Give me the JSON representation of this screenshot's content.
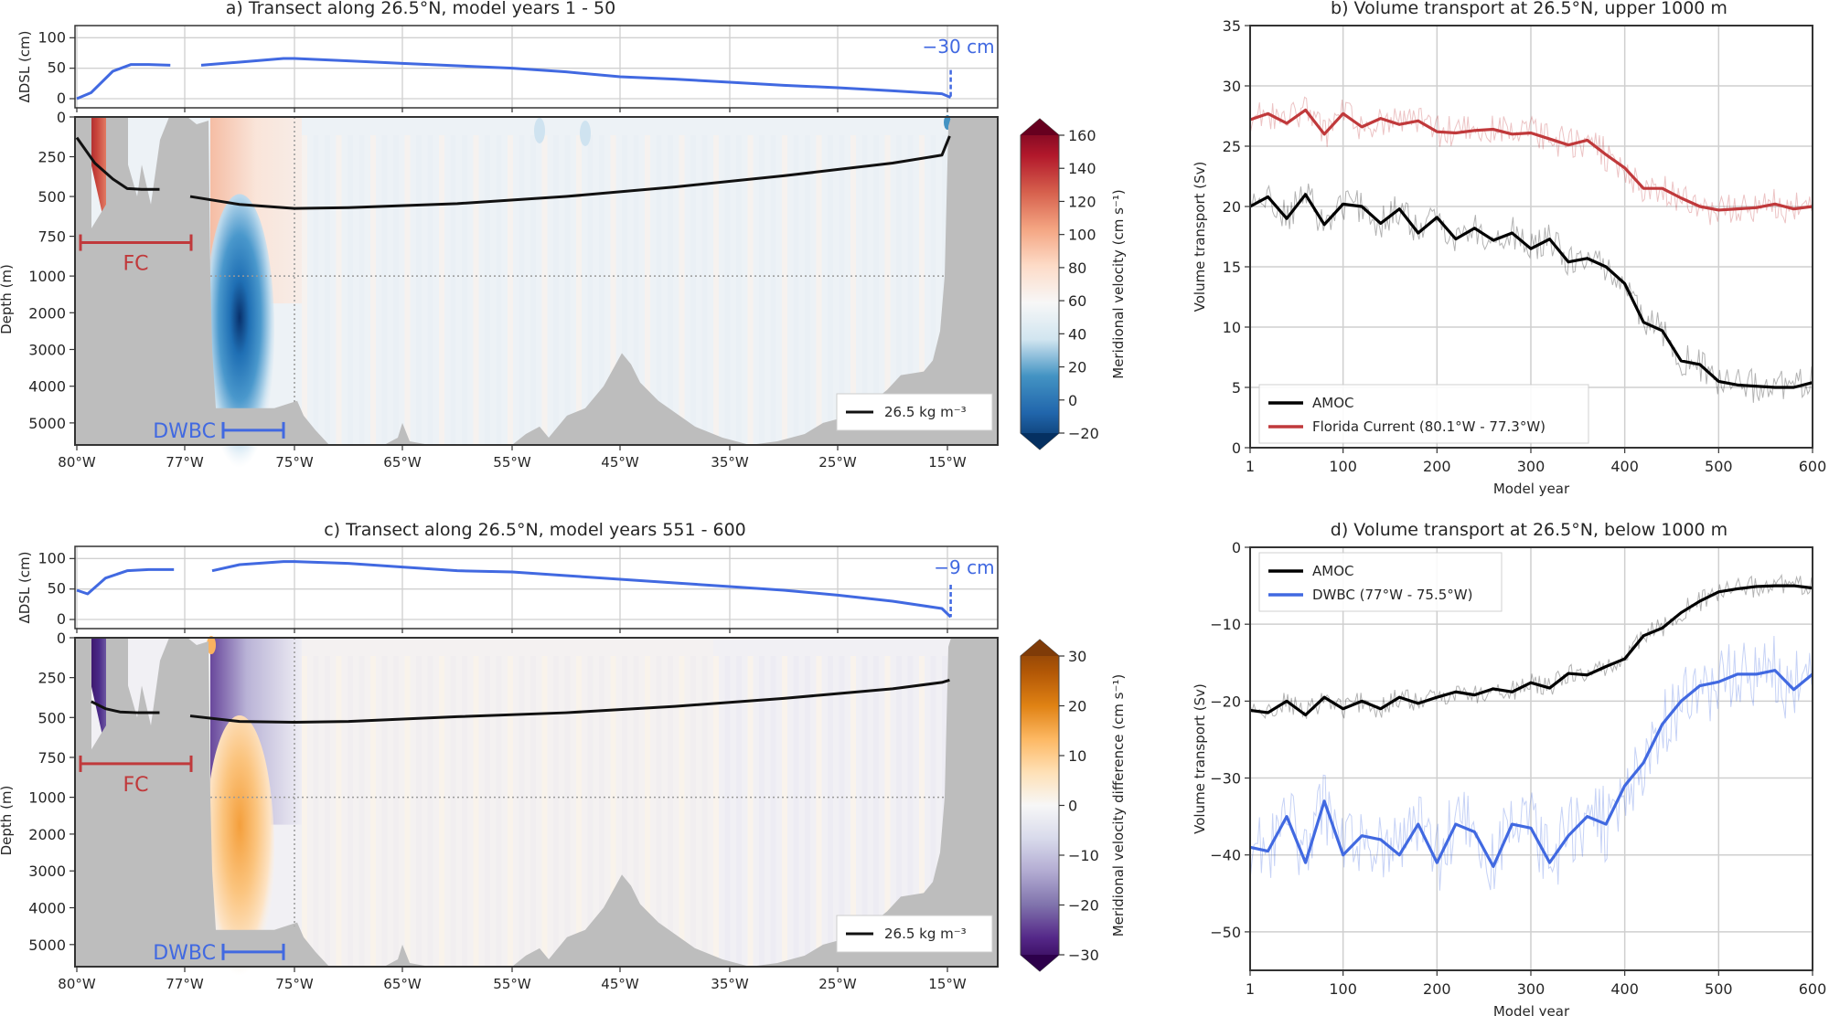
{
  "chart_data": [
    {
      "id": "a",
      "type": "heatmap",
      "title": "a) Transect along 26.5°N, model years 1 - 50",
      "dsl_panel": {
        "ylabel": "ΔDSL (cm)",
        "yticks": [
          0,
          50,
          100
        ],
        "ylim": [
          -15,
          120
        ],
        "series_color": "#4169e1",
        "x_lon": [
          -80,
          -79.6,
          -79.0,
          -78.5,
          -78,
          -77.4,
          -77.2,
          -76.7,
          -76,
          -75.2,
          -75,
          -70,
          -65,
          -60,
          -55,
          -50,
          -45,
          -40,
          -35,
          -30,
          -25,
          -20,
          -15.5,
          -14.7
        ],
        "y_cm": [
          0,
          10,
          45,
          56,
          56,
          55,
          null,
          55,
          60,
          66,
          66,
          62,
          58,
          54,
          50,
          44,
          36,
          32,
          27,
          22,
          18,
          13,
          8,
          2
        ],
        "annotation": "−30 cm"
      },
      "section": {
        "ylabel": "Depth (m)",
        "yticks_upper": [
          0,
          250,
          500,
          750,
          1000
        ],
        "yticks_lower": [
          2000,
          3000,
          4000,
          5000
        ],
        "xticks": [
          "80°W",
          "77°W",
          "75°W",
          "65°W",
          "55°W",
          "45°W",
          "35°W",
          "25°W",
          "15°W"
        ],
        "isopycnal_label": "26.5 kg m⁻³",
        "isopycnal_west": {
          "x_lon": [
            -80,
            -79.5,
            -79,
            -78.6,
            -78.2,
            -77.7
          ],
          "depth_m": [
            130,
            290,
            390,
            450,
            455,
            455
          ]
        },
        "isopycnal_main": {
          "x_lon": [
            -76.9,
            -76,
            -75,
            -70,
            -60,
            -50,
            -40,
            -30,
            -20,
            -15.5,
            -14.8
          ],
          "depth_m": [
            500,
            550,
            575,
            570,
            545,
            500,
            440,
            370,
            290,
            240,
            120
          ]
        },
        "fc_label": "FC",
        "fc_color": "#c0393b",
        "dwbc_label": "DWBC",
        "dwbc_color": "#4169e1"
      },
      "colorbar": {
        "label": "Meridional velocity (cm s⁻¹)",
        "ticks": [
          -20,
          0,
          20,
          40,
          60,
          80,
          100,
          120,
          140,
          160
        ],
        "range": [
          -20,
          160
        ],
        "colors": [
          "#053061",
          "#2166ac",
          "#4393c3",
          "#d1e5f0",
          "#f7f7f7",
          "#fddbc7",
          "#f4a582",
          "#d6604d",
          "#b2182b",
          "#67001f"
        ]
      }
    },
    {
      "id": "b",
      "type": "line",
      "title": "b) Volume transport at 26.5°N, upper 1000 m",
      "xlabel": "Model year",
      "ylabel": "Volume transport (Sv)",
      "xlim": [
        1,
        600
      ],
      "ylim": [
        0,
        35
      ],
      "xticks": [
        1,
        100,
        200,
        300,
        400,
        500,
        600
      ],
      "yticks": [
        0,
        5,
        10,
        15,
        20,
        25,
        30,
        35
      ],
      "grid": true,
      "legend_position": "lower-left",
      "x": [
        1,
        20,
        40,
        60,
        80,
        100,
        120,
        140,
        160,
        180,
        200,
        220,
        240,
        260,
        280,
        300,
        320,
        340,
        360,
        380,
        400,
        420,
        440,
        460,
        480,
        500,
        520,
        540,
        560,
        580,
        600
      ],
      "series": [
        {
          "name": "AMOC",
          "color": "#000000",
          "values": [
            20.0,
            20.8,
            19.0,
            21.0,
            18.5,
            20.2,
            20.0,
            18.6,
            19.8,
            17.8,
            19.1,
            17.3,
            18.2,
            17.2,
            17.8,
            16.5,
            17.3,
            15.4,
            15.7,
            15.0,
            13.6,
            10.4,
            9.7,
            7.2,
            6.9,
            5.5,
            5.2,
            5.1,
            5.0,
            5.0,
            5.4
          ]
        },
        {
          "name": "Florida Current (80.1°W - 77.3°W)",
          "color": "#c0393b",
          "values": [
            27.2,
            27.7,
            26.9,
            28.0,
            26.0,
            27.7,
            26.6,
            27.3,
            26.8,
            27.1,
            26.2,
            26.1,
            26.3,
            26.4,
            26.0,
            26.1,
            25.6,
            25.1,
            25.5,
            24.3,
            23.2,
            21.5,
            21.5,
            20.7,
            20.0,
            19.7,
            19.8,
            19.9,
            20.2,
            19.8,
            20.0
          ]
        }
      ]
    },
    {
      "id": "c",
      "type": "heatmap",
      "title": "c) Transect along 26.5°N, model years 551 - 600",
      "dsl_panel": {
        "ylabel": "ΔDSL (cm)",
        "yticks": [
          0,
          50,
          100
        ],
        "ylim": [
          -15,
          120
        ],
        "series_color": "#4169e1",
        "x_lon": [
          -80,
          -79.7,
          -79.2,
          -78.6,
          -78,
          -77.3,
          -77.0,
          -76.5,
          -76,
          -75.2,
          -75,
          -70,
          -65,
          -60,
          -55,
          -50,
          -45,
          -40,
          -35,
          -30,
          -25,
          -20,
          -15.5,
          -14.7
        ],
        "y_cm": [
          48,
          42,
          68,
          80,
          82,
          82,
          null,
          80,
          90,
          95,
          95,
          92,
          86,
          80,
          78,
          72,
          66,
          60,
          54,
          48,
          40,
          30,
          18,
          4
        ],
        "annotation": "−9 cm"
      },
      "section": {
        "ylabel": "Depth (m)",
        "yticks_upper": [
          0,
          250,
          500,
          750,
          1000
        ],
        "yticks_lower": [
          2000,
          3000,
          4000,
          5000
        ],
        "xticks": [
          "80°W",
          "77°W",
          "75°W",
          "65°W",
          "55°W",
          "45°W",
          "35°W",
          "25°W",
          "15°W"
        ],
        "isopycnal_label": "26.5 kg m⁻³",
        "isopycnal_west": {
          "x_lon": [
            -79.6,
            -79.2,
            -78.8,
            -78.3,
            -77.7
          ],
          "depth_m": [
            400,
            445,
            465,
            470,
            470
          ]
        },
        "isopycnal_main": {
          "x_lon": [
            -76.9,
            -76,
            -75,
            -70,
            -60,
            -50,
            -40,
            -30,
            -20,
            -15.5,
            -14.8
          ],
          "depth_m": [
            490,
            525,
            530,
            525,
            495,
            470,
            430,
            380,
            320,
            280,
            265
          ]
        },
        "fc_label": "FC",
        "fc_color": "#c0393b",
        "dwbc_label": "DWBC",
        "dwbc_color": "#4169e1"
      },
      "colorbar": {
        "label": "Meridional velocity difference (cm s⁻¹)",
        "ticks": [
          -30,
          -20,
          -10,
          0,
          10,
          20,
          30
        ],
        "range": [
          -30,
          30
        ],
        "colors": [
          "#2d004b",
          "#542788",
          "#8073ac",
          "#b2abd2",
          "#d8daeb",
          "#f7f7f7",
          "#fee0b6",
          "#fdb863",
          "#e08214",
          "#b35806",
          "#7f3b08"
        ]
      }
    },
    {
      "id": "d",
      "type": "line",
      "title": "d) Volume transport at 26.5°N, below 1000 m",
      "xlabel": "Model year",
      "ylabel": "Volume transport (Sv)",
      "xlim": [
        1,
        600
      ],
      "ylim": [
        -55,
        0
      ],
      "xticks": [
        1,
        100,
        200,
        300,
        400,
        500,
        600
      ],
      "yticks": [
        -50,
        -40,
        -30,
        -20,
        -10,
        0
      ],
      "grid": true,
      "legend_position": "upper-left",
      "x": [
        1,
        20,
        40,
        60,
        80,
        100,
        120,
        140,
        160,
        180,
        200,
        220,
        240,
        260,
        280,
        300,
        320,
        340,
        360,
        380,
        400,
        420,
        440,
        460,
        480,
        500,
        520,
        540,
        560,
        580,
        600
      ],
      "series": [
        {
          "name": "AMOC",
          "color": "#000000",
          "values": [
            -21.2,
            -21.5,
            -20.0,
            -21.8,
            -19.5,
            -21.0,
            -20.0,
            -21.0,
            -19.5,
            -20.3,
            -19.5,
            -18.8,
            -19.2,
            -18.4,
            -18.8,
            -17.6,
            -18.3,
            -16.4,
            -16.6,
            -15.5,
            -14.5,
            -11.5,
            -10.5,
            -8.5,
            -7.0,
            -5.8,
            -5.4,
            -5.1,
            -5.0,
            -5.0,
            -5.3
          ]
        },
        {
          "name": "DWBC (77°W - 75.5°W)",
          "color": "#4169e1",
          "values": [
            -39.0,
            -39.5,
            -35.0,
            -41.0,
            -33.0,
            -40.0,
            -37.5,
            -38.0,
            -40.0,
            -36.0,
            -41.0,
            -36.0,
            -37.0,
            -41.5,
            -36.0,
            -36.5,
            -41.0,
            -37.5,
            -35.0,
            -36.0,
            -31.0,
            -28.0,
            -23.0,
            -20.0,
            -18.0,
            -17.5,
            -16.5,
            -16.5,
            -16.0,
            -18.5,
            -16.5
          ]
        }
      ]
    }
  ]
}
